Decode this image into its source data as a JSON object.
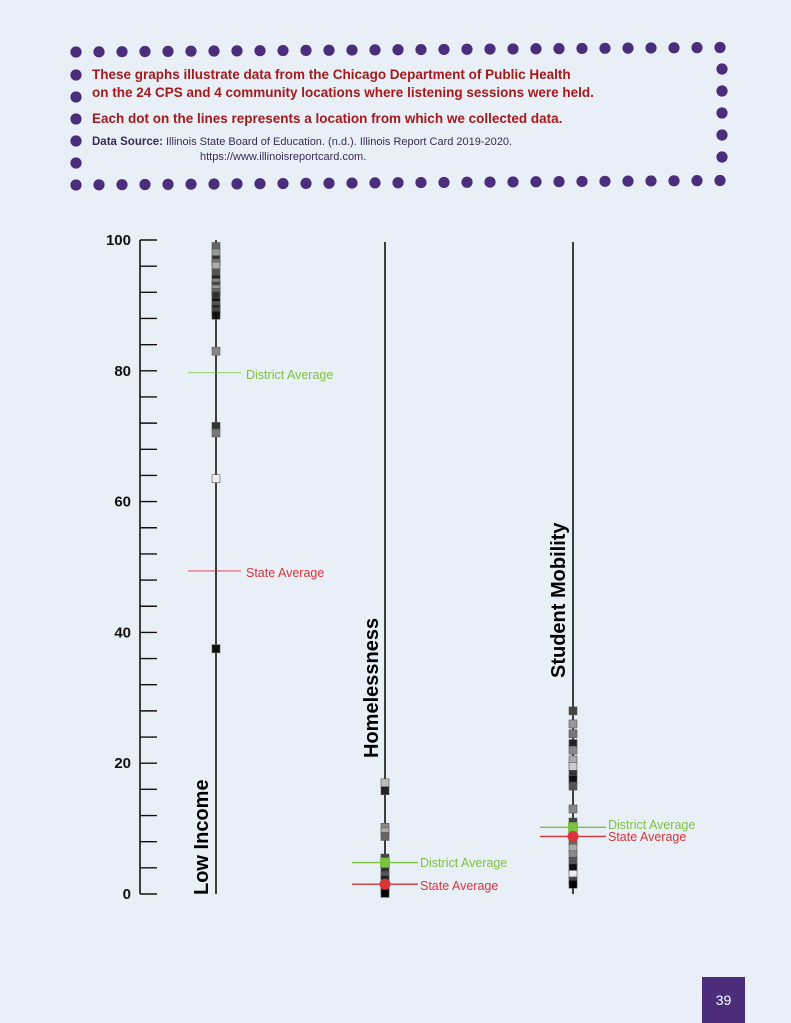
{
  "note": {
    "line1": "These graphs illustrate data from the Chicago Department of Public Health",
    "line2": "on the 24 CPS and 4 community locations where listening sessions were held.",
    "line3": "Each dot on the lines represents a location from which we collected data.",
    "source_label": "Data Source:",
    "source_text": "Illinois State Board of Education. (n.d.). Illinois Report Card 2019-2020.",
    "source_url": "https://www.illinoisreportcard.com."
  },
  "page_number": "39",
  "colors": {
    "border_dots": "#4b2d7c",
    "note_text": "#a5191c",
    "district": "#7dc142",
    "state": "#d8343a",
    "axis": "#111111"
  },
  "chart_data": {
    "type": "scatter",
    "ylim": [
      0,
      100
    ],
    "y_ticks": [
      "0",
      "20",
      "40",
      "60",
      "80",
      "100"
    ],
    "grid": false,
    "series": [
      {
        "name": "Low Income",
        "values": [
          99,
          98,
          97,
          96.5,
          96,
          95,
          94,
          93.5,
          93,
          92.5,
          92,
          91.5,
          90.5,
          90,
          89.5,
          89,
          88.5,
          83,
          71.5,
          70.5,
          63.5,
          37.5
        ],
        "shades": [
          "#666",
          "#999",
          "#333",
          "#777",
          "#aaa",
          "#555",
          "#222",
          "#888",
          "#444",
          "#999",
          "#666",
          "#333",
          "#111",
          "#555",
          "#222",
          "#444",
          "#111",
          "#888",
          "#333",
          "#777",
          "#eee",
          "#111"
        ],
        "district_average": 79.7,
        "state_average": 49.4,
        "district_label": "District Average",
        "state_label": "State Average"
      },
      {
        "name": "Homelessness",
        "values": [
          17,
          15.8,
          10.2,
          9.5,
          8.8,
          5.5,
          4.5,
          3.5,
          2.8,
          2.2,
          1.5,
          1,
          0.5,
          0.1
        ],
        "shades": [
          "#bbb",
          "#222",
          "#888",
          "#aaa",
          "#666",
          "#444",
          "#777",
          "#333",
          "#555",
          "#222",
          "#111",
          "#444",
          "#111",
          "#000"
        ],
        "district_average": 4.8,
        "state_average": 1.5,
        "district_label": "District Average",
        "state_label": "State Average"
      },
      {
        "name": "Student Mobility",
        "values": [
          28,
          26,
          24.5,
          23,
          22,
          20.5,
          19.5,
          18.3,
          17.5,
          16.5,
          13,
          11,
          9.5,
          8,
          7,
          6,
          5,
          4,
          3,
          2,
          1.5
        ],
        "shades": [
          "#444",
          "#999",
          "#777",
          "#222",
          "#888",
          "#aaa",
          "#ccc",
          "#333",
          "#111",
          "#555",
          "#888",
          "#444",
          "#999",
          "#666",
          "#aaa",
          "#888",
          "#555",
          "#111",
          "#eee",
          "#444",
          "#000"
        ],
        "district_average": 10.2,
        "state_average": 8.8,
        "district_label": "District Average",
        "state_label": "State Average"
      }
    ]
  }
}
